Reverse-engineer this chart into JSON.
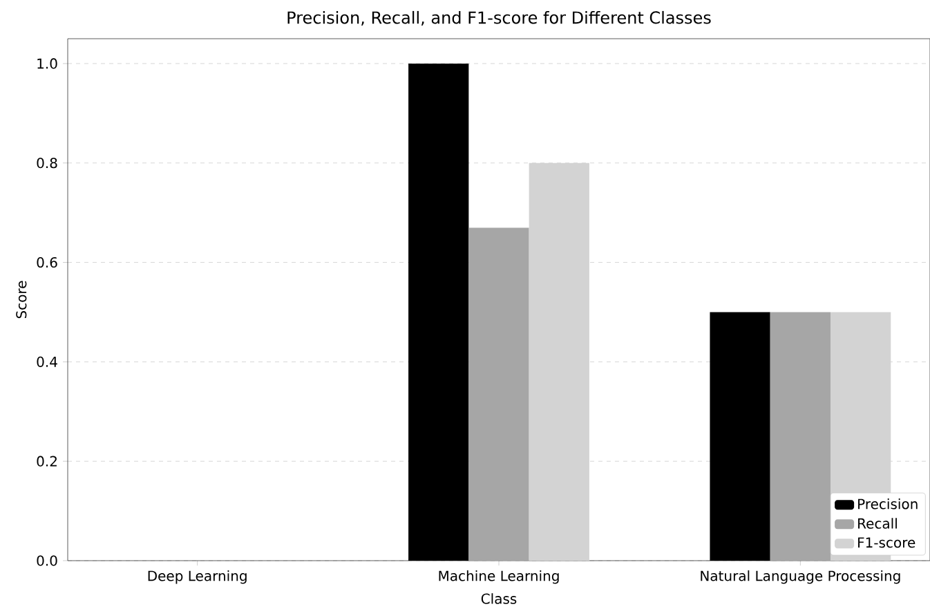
{
  "chart_data": {
    "type": "bar",
    "title": "Precision, Recall, and F1-score for Different Classes",
    "xlabel": "Class",
    "ylabel": "Score",
    "categories": [
      "Deep Learning",
      "Machine Learning",
      "Natural Language Processing"
    ],
    "series": [
      {
        "name": "Precision",
        "color": "#000000",
        "values": [
          0,
          1.0,
          0.5
        ]
      },
      {
        "name": "Recall",
        "color": "#a6a6a6",
        "values": [
          0,
          0.67,
          0.5
        ]
      },
      {
        "name": "F1-score",
        "color": "#d3d3d3",
        "values": [
          0,
          0.8,
          0.5
        ]
      }
    ],
    "ylim": [
      0,
      1.05
    ],
    "yticks": [
      {
        "value": 0,
        "label": "0.0"
      },
      {
        "value": 0.2,
        "label": "0.2"
      },
      {
        "value": 0.4,
        "label": "0.4"
      },
      {
        "value": 0.6,
        "label": "0.6"
      },
      {
        "value": 0.8,
        "label": "0.8"
      },
      {
        "value": 1.0,
        "label": "1.0"
      }
    ],
    "grid": "y",
    "legend": "bottom right"
  }
}
